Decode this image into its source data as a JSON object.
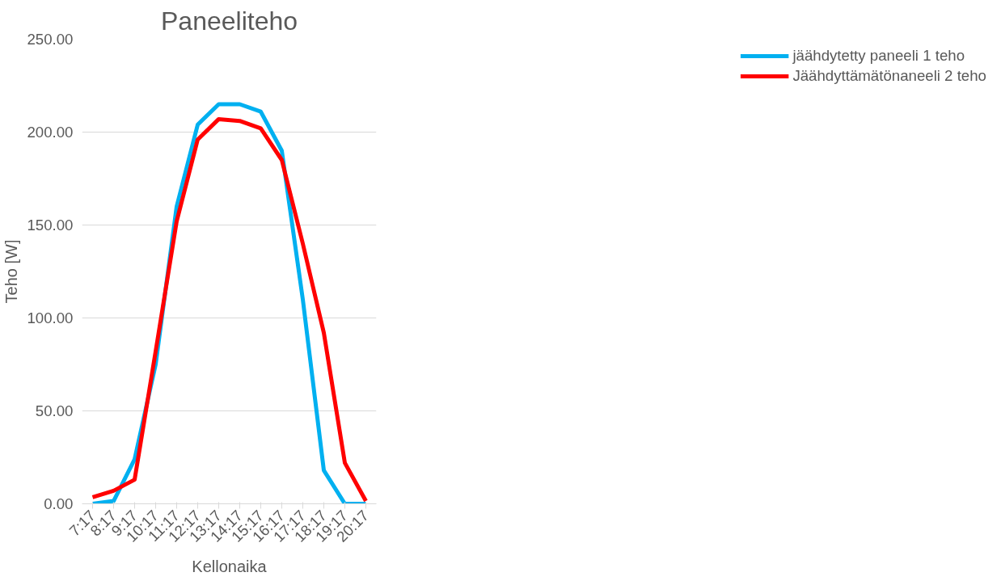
{
  "chart_data": {
    "type": "line",
    "title": "Paneeliteho",
    "xlabel": "Kellonaika",
    "ylabel": "Teho [W]",
    "categories": [
      "7:17",
      "8:17",
      "9:17",
      "10:17",
      "11:17",
      "12:17",
      "13:17",
      "14:17",
      "15:17",
      "16:17",
      "17:17",
      "18:17",
      "19:17",
      "20:17"
    ],
    "series": [
      {
        "name": "jäähdytetty paneeli 1 teho",
        "color": "#00b0f0",
        "values": [
          0,
          1.5,
          24,
          75,
          160,
          204,
          215,
          215,
          211,
          190,
          110,
          18,
          0,
          0
        ]
      },
      {
        "name": "Jäähdyttämätönaneeli 2 teho",
        "color": "#ff0000",
        "values": [
          3.5,
          7,
          13,
          82,
          152,
          196,
          207,
          206,
          202,
          185,
          140,
          92,
          22,
          1.5
        ]
      }
    ],
    "ylim": [
      0,
      250
    ],
    "yticks": [
      {
        "value": 0,
        "label": "0.00"
      },
      {
        "value": 50,
        "label": "50.00"
      },
      {
        "value": 100,
        "label": "100.00"
      },
      {
        "value": 150,
        "label": "150.00"
      },
      {
        "value": 200,
        "label": "200.00"
      },
      {
        "value": 250,
        "label": "250.00"
      }
    ],
    "grid": "y",
    "legend": "right",
    "marker": "none",
    "line_style": "solid"
  }
}
